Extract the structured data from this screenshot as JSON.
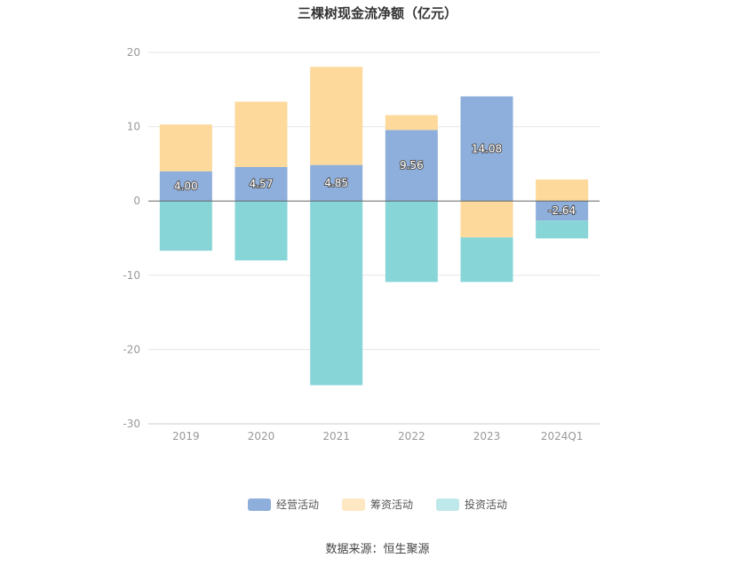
{
  "title": "三棵树现金流净额（亿元）",
  "source": "数据来源：恒生聚源",
  "colors": {
    "operating": "#8eaedb",
    "financing": "#fdd99b",
    "investing": "#88d5d8",
    "grid": "#e6e6e6",
    "zero_line": "#666666",
    "tick_text": "#999999"
  },
  "chart_data": {
    "type": "bar",
    "stacked": true,
    "categories": [
      "2019",
      "2020",
      "2021",
      "2022",
      "2023",
      "2024Q1"
    ],
    "series": [
      {
        "name": "经营活动",
        "values": [
          4.0,
          4.57,
          4.85,
          9.56,
          14.08,
          -2.64
        ],
        "labels": [
          "4.00",
          "4.57",
          "4.85",
          "9.56",
          "14.08",
          "-2.64"
        ]
      },
      {
        "name": "筹资活动",
        "values": [
          6.3,
          8.8,
          13.2,
          2.0,
          -4.9,
          2.9
        ]
      },
      {
        "name": "投资活动",
        "values": [
          -6.7,
          -8.0,
          -24.8,
          -10.9,
          -6.0,
          -2.4
        ]
      }
    ],
    "ylim": [
      -30,
      20
    ],
    "yticks": [
      "20",
      "10",
      "0",
      "-10",
      "-20",
      "-30"
    ],
    "legend_position": "bottom",
    "grid": true
  }
}
